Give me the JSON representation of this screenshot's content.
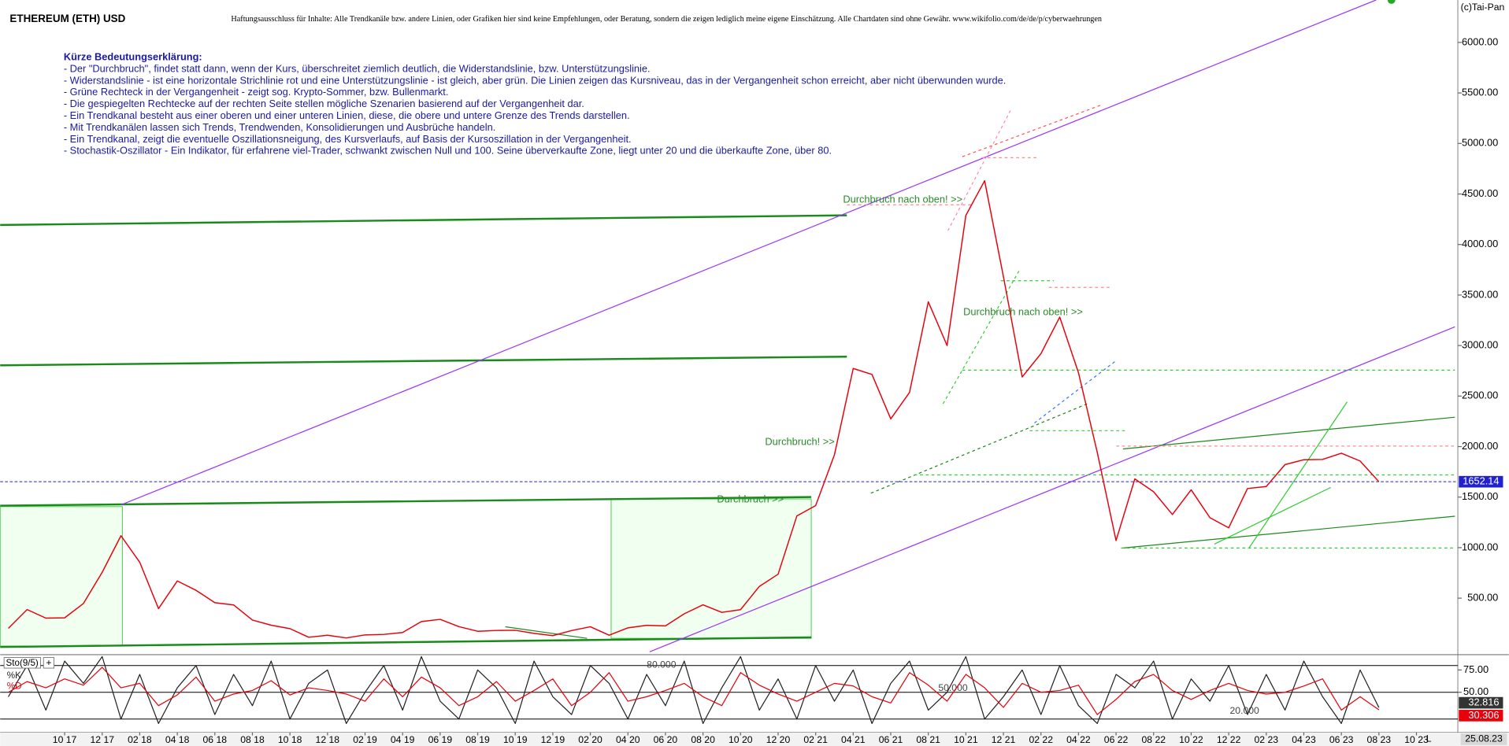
{
  "header": {
    "title": "ETHEREUM (ETH) USD",
    "disclaimer": "Haftungsausschluss für Inhalte: Alle Trendkanäle bzw. andere Linien, oder Grafiken hier sind keine Empfehlungen, oder Beratung, sondern die zeigen lediglich meine eigene Einschätzung. Alle Chartdaten sind ohne Gewähr.  www.wikifolio.com/de/de/p/cyberwaehrungen",
    "copyright": "(c)Tai-Pan"
  },
  "notes": {
    "heading": "Kürze Bedeutungserklärung:",
    "lines": [
      "- Der \"Durchbruch\", findet statt dann, wenn der Kurs, überschreitet ziemlich deutlich, die Widerstandslinie, bzw. Unterstützungslinie.",
      "- Widerstandslinie - ist eine horizontale Strichlinie rot und eine Unterstützungslinie - ist gleich, aber grün. Die Linien zeigen das Kursniveau, das in der Vergangenheit schon erreicht, aber nicht überwunden wurde.",
      "- Grüne Rechteck in der Vergangenheit - zeigt sog. Krypto-Sommer, bzw. Bullenmarkt.",
      " - Die gespiegelten Rechtecke auf der rechten Seite stellen mögliche Szenarien basierend auf der Vergangenheit dar.",
      " - Ein Trendkanal besteht aus einer oberen und einer unteren Linien, diese, die obere und untere Grenze des Trends darstellen.",
      " - Mit Trendkanälen lassen sich Trends, Trendwenden, Konsolidierungen und Ausbrüche handeln.",
      " - Ein Trendkanal, zeigt die eventuelle Oszillationsneigung, des Kursverlaufs, auf Basis der Kursoszillation in der Vergangenheit.",
      " - Stochastik-Oszillator - Ein Indikator, für erfahrene viel-Trader, schwankt zwischen Null und 100. Seine überverkaufte Zone, liegt unter 20 und die überkaufte Zone, über 80."
    ]
  },
  "chart_data": [
    {
      "type": "line",
      "title": "ETHEREUM (ETH) USD",
      "categories": [
        null,
        null,
        null,
        "10 17",
        null,
        "12 17",
        null,
        "02 18",
        null,
        "04 18",
        null,
        "06 18",
        null,
        "08 18",
        null,
        "10 18",
        null,
        "12 18",
        null,
        "02 19",
        null,
        "04 19",
        null,
        "06 19",
        null,
        "08 19",
        null,
        "10 19",
        null,
        "12 19",
        null,
        "02 20",
        null,
        "04 20",
        null,
        "06 20",
        null,
        "08 20",
        null,
        "10 20",
        null,
        "12 20",
        null,
        "02 21",
        null,
        "04 21",
        null,
        "06 21",
        null,
        "08 21",
        null,
        "10 21",
        null,
        "12 21",
        null,
        "02 22",
        null,
        "04 22",
        null,
        "06 22",
        null,
        "08 22",
        null,
        "10 22",
        null,
        "12 22",
        null,
        "02 23",
        null,
        "04 23",
        null,
        "06 23",
        null,
        "08 23",
        null,
        "10 23"
      ],
      "values": [
        201,
        387,
        302,
        305,
        447,
        756,
        1118,
        855,
        396,
        670,
        577,
        455,
        433,
        283,
        232,
        198,
        113,
        133,
        106,
        136,
        141,
        160,
        268,
        290,
        218,
        172,
        180,
        182,
        151,
        129,
        179,
        217,
        133,
        206,
        231,
        225,
        345,
        434,
        359,
        386,
        616,
        737,
        1314,
        1416,
        1918,
        2773,
        2714,
        2274,
        2536,
        3433,
        3000,
        4288,
        4631,
        3683,
        2689,
        2920,
        3282,
        2730,
        1942,
        1070,
        1680,
        1553,
        1328,
        1572,
        1296,
        1196,
        1585,
        1605,
        1822,
        1870,
        1873,
        1934,
        1857,
        1652,
        null,
        null
      ],
      "color": "#e8000b",
      "current": 1652.14,
      "current_color": "#2222cc",
      "ylim": [
        -50,
        6420
      ],
      "yticks": [
        {
          "value": 500,
          "label": "500.00"
        },
        {
          "value": 1000,
          "label": "1000.00"
        },
        {
          "value": 1500,
          "label": "1500.00"
        },
        {
          "value": 2000,
          "label": "2000.00"
        },
        {
          "value": 2500,
          "label": "2500.00"
        },
        {
          "value": 3000,
          "label": "3000.00"
        },
        {
          "value": 3500,
          "label": "3500.00"
        },
        {
          "value": 4000,
          "label": "4000.00"
        },
        {
          "value": 4500,
          "label": "4500.00"
        },
        {
          "value": 5000,
          "label": "5000.00"
        },
        {
          "value": 5500,
          "label": "5500.00"
        },
        {
          "value": 6000,
          "label": "6000.00"
        }
      ],
      "annotations": [
        "Durchbruch nach oben! >>",
        "Durchbruch nach oben! >>",
        "Durchbruch! >>",
        "Durchbruch >>"
      ],
      "date_label": "25.08.23",
      "axis_marker": "L"
    },
    {
      "type": "line",
      "title": "Sto(9/5)",
      "ylim": [
        7,
        90
      ],
      "yticks": [
        {
          "value": 75,
          "label": "75.00"
        },
        {
          "value": 50,
          "label": "50.00"
        }
      ],
      "levels": [
        {
          "value": 80,
          "label": "80.000"
        },
        {
          "value": 50,
          "label": "50.000"
        },
        {
          "value": 20,
          "label": "20.000"
        }
      ],
      "series": [
        {
          "name": "%K",
          "color": "#222222",
          "current": 32.816,
          "values": [
            45,
            80,
            30,
            85,
            60,
            90,
            20,
            70,
            15,
            55,
            80,
            25,
            70,
            35,
            85,
            20,
            60,
            75,
            15,
            50,
            80,
            30,
            90,
            40,
            20,
            75,
            55,
            15,
            85,
            45,
            25,
            80,
            60,
            20,
            70,
            35,
            85,
            15,
            55,
            90,
            30,
            65,
            20,
            80,
            40,
            75,
            15,
            60,
            85,
            30,
            50,
            90,
            20,
            45,
            75,
            25,
            80,
            35,
            15,
            70,
            55,
            85,
            20,
            65,
            40,
            80,
            25,
            70,
            30,
            85,
            45,
            15,
            75,
            32.816,
            null,
            null
          ]
        },
        {
          "name": "%D",
          "color": "#e8000b",
          "current": 30.306,
          "values": [
            50,
            62,
            55,
            65,
            58,
            78,
            55,
            60,
            35,
            47,
            67,
            40,
            48,
            52,
            63,
            47,
            55,
            52,
            48,
            40,
            65,
            45,
            67,
            55,
            35,
            45,
            62,
            40,
            52,
            65,
            35,
            50,
            72,
            40,
            45,
            52,
            60,
            45,
            35,
            72,
            58,
            48,
            40,
            50,
            60,
            57,
            45,
            38,
            72,
            58,
            40,
            70,
            55,
            33,
            60,
            50,
            52,
            58,
            25,
            42,
            62,
            70,
            52,
            42,
            52,
            60,
            52,
            48,
            50,
            57,
            65,
            30,
            45,
            30.306,
            null,
            null
          ]
        }
      ]
    }
  ]
}
